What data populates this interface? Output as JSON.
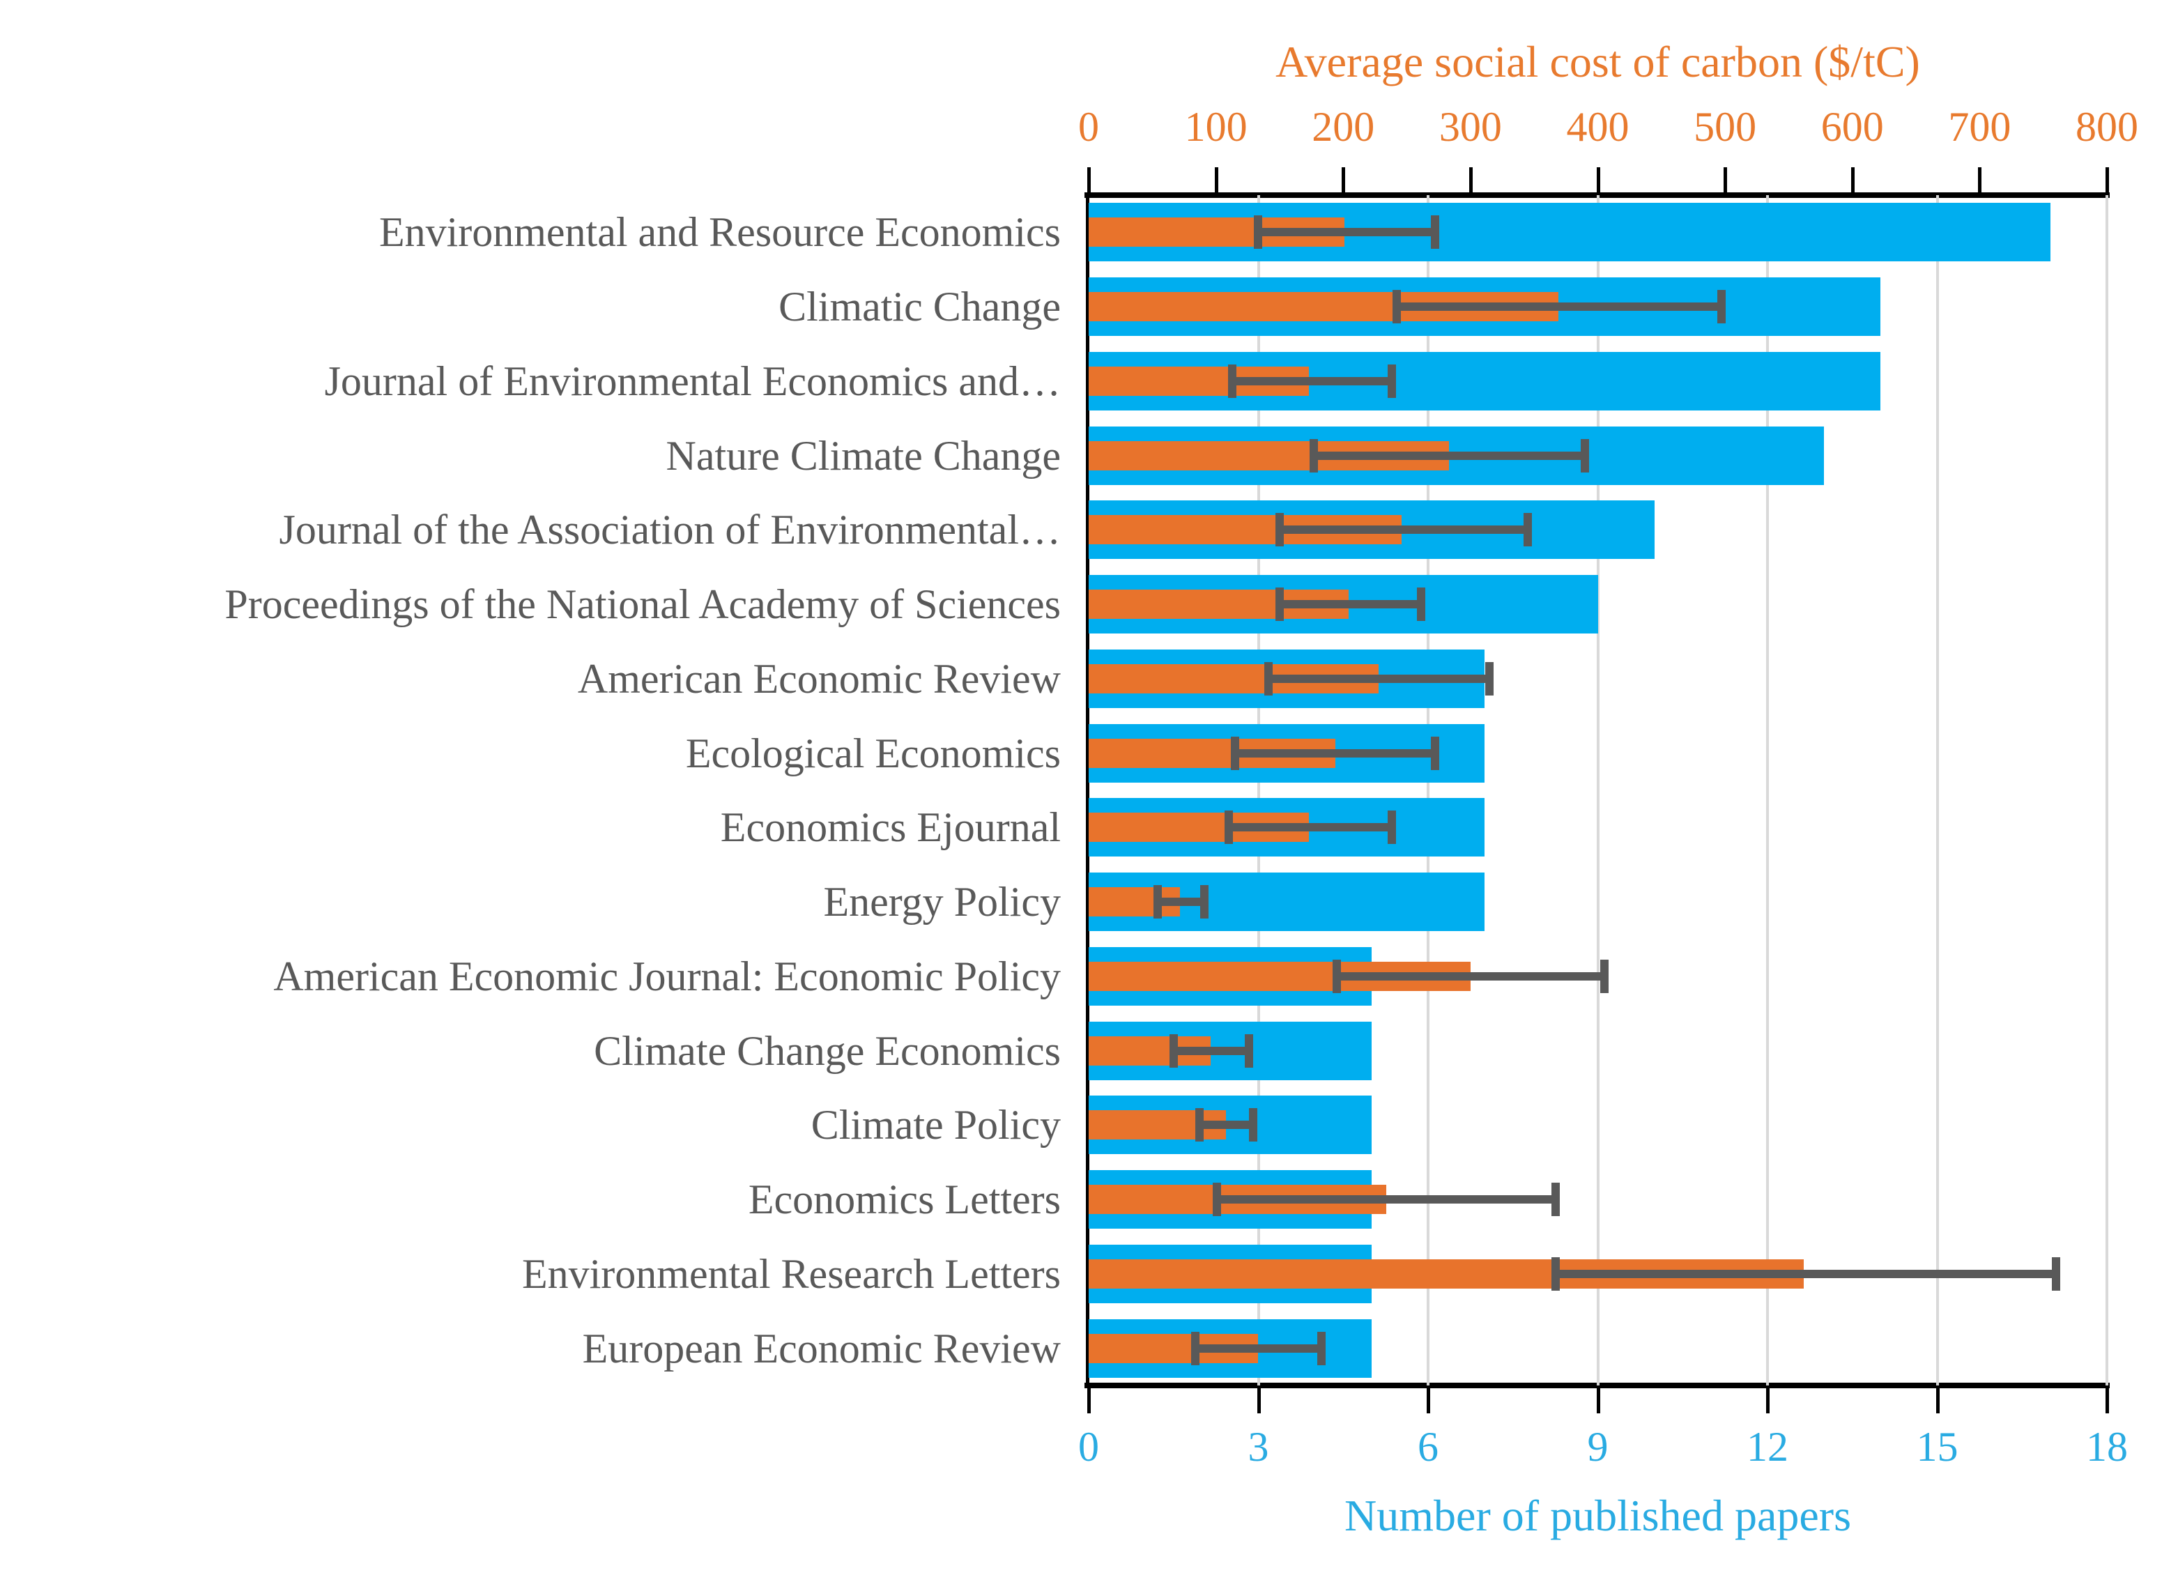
{
  "chart_data": {
    "type": "bar",
    "orientation": "horizontal",
    "title": "",
    "categories": [
      "Environmental and Resource Economics",
      "Climatic Change",
      "Journal of Environmental Economics and…",
      "Nature Climate Change",
      "Journal of the Association of Environmental…",
      "Proceedings of the National Academy of Sciences",
      "American Economic Review",
      "Ecological Economics",
      "Economics Ejournal",
      "Energy Policy",
      "American Economic Journal: Economic Policy",
      "Climate Change Economics",
      "Climate Policy",
      "Economics Letters",
      "Environmental Research Letters",
      "European Economic Review"
    ],
    "series": [
      {
        "name": "Number of published papers",
        "axis": "bottom",
        "color": "#00AEEF",
        "values": [
          17,
          14,
          14,
          13,
          10,
          9,
          7,
          7,
          7,
          7,
          5,
          5,
          5,
          5,
          5,
          5
        ]
      },
      {
        "name": "Average social cost of carbon ($/tC)",
        "axis": "top",
        "color": "#E8732C",
        "values": [
          201,
          369,
          173,
          283,
          246,
          204,
          228,
          194,
          173,
          72,
          300,
          96,
          108,
          234,
          562,
          133
        ],
        "error_low": [
          133,
          242,
          113,
          177,
          150,
          150,
          141,
          115,
          110,
          54,
          195,
          67,
          87,
          101,
          367,
          84
        ],
        "error_high": [
          272,
          497,
          238,
          390,
          345,
          261,
          315,
          272,
          238,
          91,
          405,
          126,
          129,
          367,
          760,
          183
        ]
      }
    ],
    "top_axis": {
      "title": "Average social cost of carbon ($/tC)",
      "ticks": [
        0,
        100,
        200,
        300,
        400,
        500,
        600,
        700,
        800
      ],
      "min": 0,
      "max": 800,
      "text_color": "#E87A2E"
    },
    "bottom_axis": {
      "title": "Number of published papers",
      "ticks": [
        0,
        3,
        6,
        9,
        12,
        15,
        18
      ],
      "min": 0,
      "max": 18,
      "text_color": "#29ABE2"
    },
    "styles": {
      "bar_blue": "#00AEEF",
      "bar_orange": "#E8732C",
      "error_bar_color": "#595959",
      "category_label_color": "#595959",
      "gridline_color": "#D9D9D9",
      "axis_line_color": "#000000"
    },
    "grid": "vertical-at-bottom-ticks",
    "legend_position": "none"
  }
}
